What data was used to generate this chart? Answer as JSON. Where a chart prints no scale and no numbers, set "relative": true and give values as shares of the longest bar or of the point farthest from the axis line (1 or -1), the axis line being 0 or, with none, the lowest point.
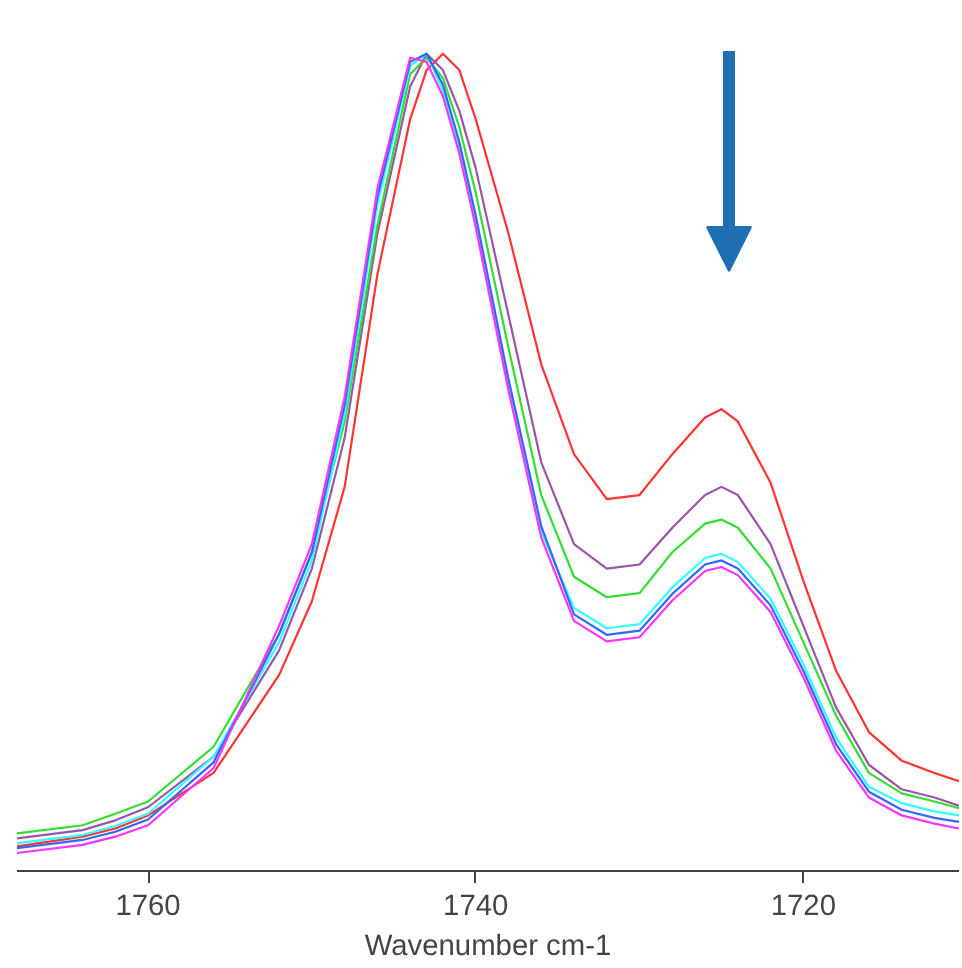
{
  "chart_data": {
    "type": "line",
    "relative": true,
    "xlabel": "Wavenumber cm-1",
    "xlim": [
      1768,
      1710.5
    ],
    "xticks": [
      1760,
      1740,
      1720
    ],
    "grid": false,
    "tick_labels": "x",
    "x": [
      1768,
      1764,
      1762,
      1760,
      1756,
      1752,
      1750,
      1748,
      1746,
      1744,
      1743,
      1742,
      1741,
      1740,
      1738,
      1736,
      1734,
      1732,
      1730,
      1728,
      1726,
      1725,
      1724,
      1722,
      1720,
      1718,
      1716,
      1714,
      1712,
      1710.5
    ],
    "series": [
      {
        "color": "#ff3333",
        "values": [
          0.03,
          0.042,
          0.052,
          0.068,
          0.12,
          0.24,
          0.33,
          0.47,
          0.73,
          0.92,
          0.98,
          1.0,
          0.98,
          0.92,
          0.78,
          0.62,
          0.51,
          0.455,
          0.46,
          0.51,
          0.555,
          0.565,
          0.55,
          0.475,
          0.355,
          0.245,
          0.17,
          0.135,
          0.12,
          0.11
        ]
      },
      {
        "color": "#9955aa",
        "values": [
          0.04,
          0.05,
          0.062,
          0.078,
          0.14,
          0.27,
          0.37,
          0.53,
          0.78,
          0.96,
          1.0,
          0.98,
          0.93,
          0.86,
          0.68,
          0.5,
          0.4,
          0.37,
          0.375,
          0.42,
          0.46,
          0.47,
          0.46,
          0.4,
          0.3,
          0.2,
          0.13,
          0.1,
          0.09,
          0.08
        ]
      },
      {
        "color": "#33dd33",
        "values": [
          0.046,
          0.056,
          0.07,
          0.085,
          0.152,
          0.29,
          0.39,
          0.55,
          0.79,
          0.975,
          0.995,
          0.97,
          0.91,
          0.83,
          0.64,
          0.46,
          0.36,
          0.335,
          0.34,
          0.39,
          0.425,
          0.43,
          0.42,
          0.37,
          0.28,
          0.19,
          0.12,
          0.095,
          0.085,
          0.077
        ]
      },
      {
        "color": "#33ffff",
        "values": [
          0.034,
          0.044,
          0.055,
          0.07,
          0.14,
          0.28,
          0.38,
          0.56,
          0.815,
          0.985,
          1.0,
          0.955,
          0.885,
          0.795,
          0.595,
          0.415,
          0.322,
          0.297,
          0.302,
          0.347,
          0.383,
          0.388,
          0.378,
          0.333,
          0.253,
          0.163,
          0.103,
          0.083,
          0.073,
          0.068
        ]
      },
      {
        "color": "#3366ff",
        "values": [
          0.028,
          0.038,
          0.048,
          0.063,
          0.133,
          0.29,
          0.39,
          0.57,
          0.825,
          0.99,
          1.0,
          0.962,
          0.892,
          0.802,
          0.602,
          0.422,
          0.314,
          0.289,
          0.294,
          0.339,
          0.375,
          0.38,
          0.37,
          0.325,
          0.245,
          0.155,
          0.097,
          0.075,
          0.065,
          0.06
        ]
      },
      {
        "color": "#ff33ff",
        "values": [
          0.022,
          0.032,
          0.042,
          0.056,
          0.126,
          0.3,
          0.4,
          0.58,
          0.835,
          0.995,
          0.99,
          0.948,
          0.878,
          0.788,
          0.588,
          0.408,
          0.306,
          0.281,
          0.286,
          0.331,
          0.367,
          0.372,
          0.362,
          0.317,
          0.237,
          0.147,
          0.09,
          0.068,
          0.058,
          0.052
        ]
      }
    ]
  }
}
